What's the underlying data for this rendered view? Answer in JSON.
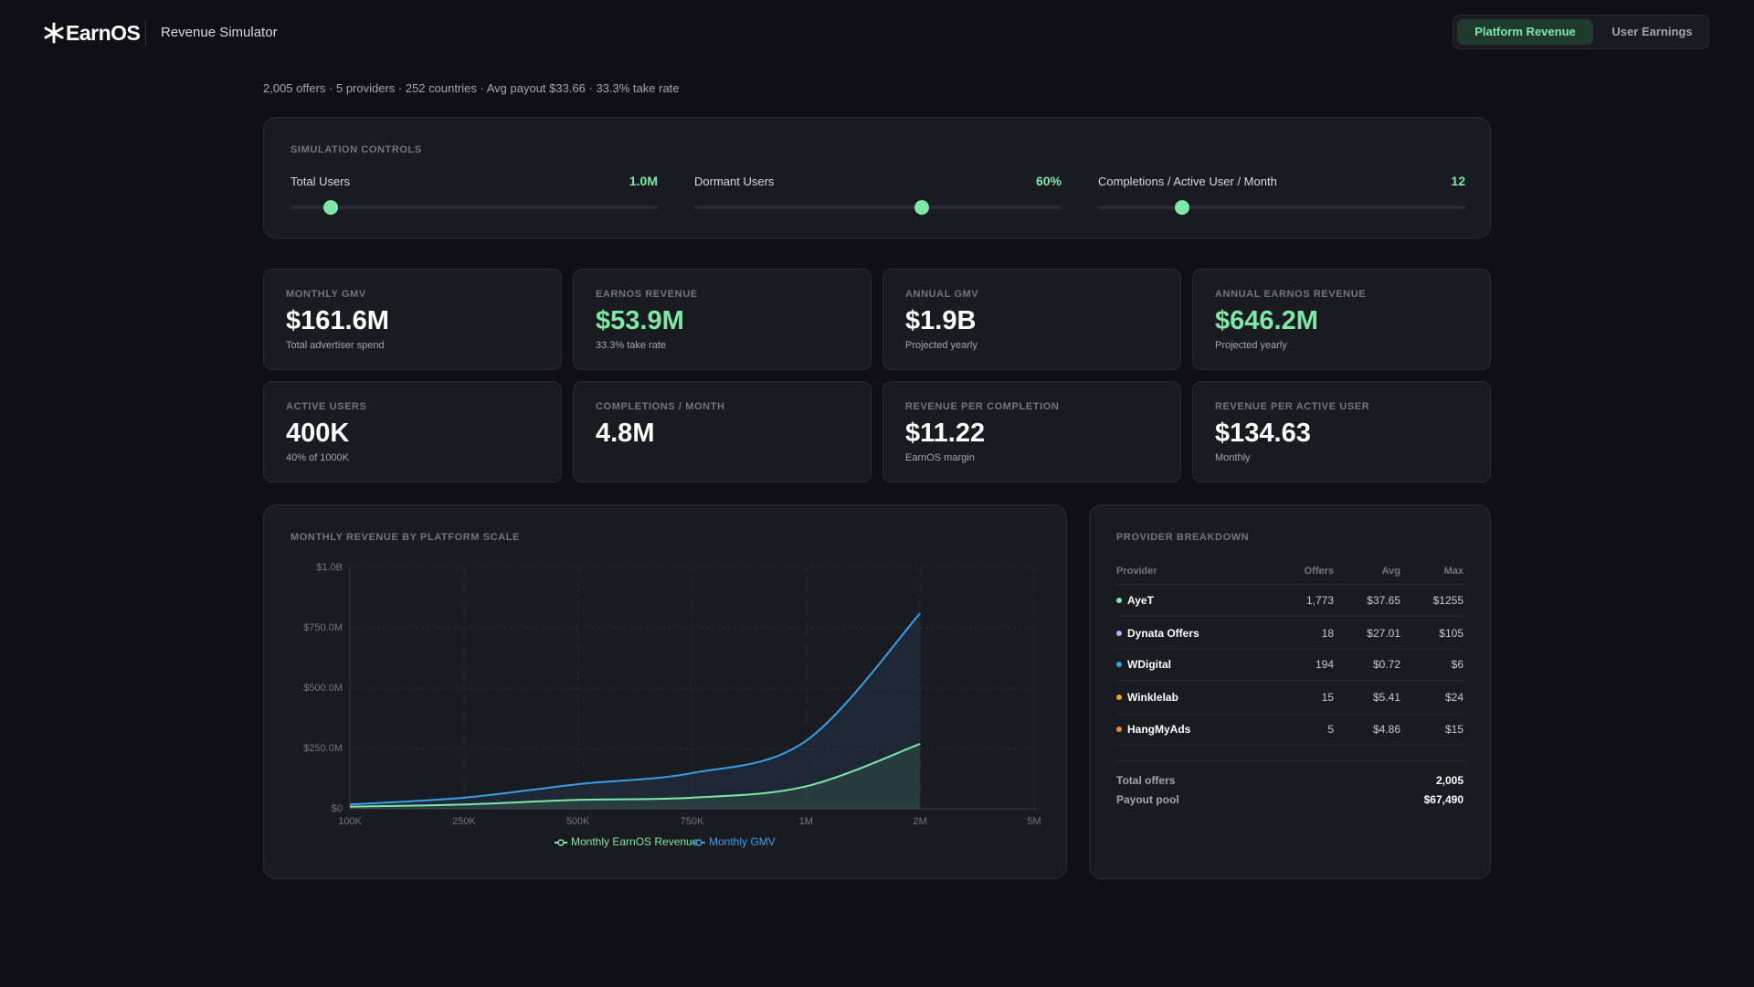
{
  "header": {
    "logo": "EarnOS",
    "title": "Revenue Simulator",
    "tabs": [
      "Platform Revenue",
      "User Earnings"
    ]
  },
  "summary": "2,005 offers · 5 providers · 252 countries · Avg payout $33.66 · 33.3% take rate",
  "controls": {
    "title": "SIMULATION CONTROLS",
    "sliders": [
      {
        "label": "Total Users",
        "value": "1.0M"
      },
      {
        "label": "Dormant Users",
        "value": "60%"
      },
      {
        "label": "Completions / Active User / Month",
        "value": "12"
      }
    ]
  },
  "kpis": [
    {
      "label": "MONTHLY GMV",
      "value": "$161.6M",
      "note": "Total advertiser spend",
      "color": "#ffffff"
    },
    {
      "label": "EARNOS REVENUE",
      "value": "$53.9M",
      "note": "33.3% take rate",
      "color": "#7ee8a6"
    },
    {
      "label": "ANNUAL GMV",
      "value": "$1.9B",
      "note": "Projected yearly",
      "color": "#ffffff"
    },
    {
      "label": "ANNUAL EARNOS REVENUE",
      "value": "$646.2M",
      "note": "Projected yearly",
      "color": "#7ee8a6"
    },
    {
      "label": "ACTIVE USERS",
      "value": "400K",
      "note": "40% of 1000K",
      "color": "#ffffff"
    },
    {
      "label": "COMPLETIONS / MONTH",
      "value": "4.8M",
      "color": "#ffffff"
    },
    {
      "label": "REVENUE PER COMPLETION",
      "value": "$11.22",
      "note": "EarnOS margin",
      "color": "#ffffff"
    },
    {
      "label": "REVENUE PER ACTIVE USER",
      "value": "$134.63",
      "note": "Monthly",
      "color": "#ffffff"
    }
  ],
  "chart_data": {
    "type": "line",
    "title": "MONTHLY REVENUE BY PLATFORM SCALE",
    "categories": [
      "100K",
      "250K",
      "500K",
      "750K",
      "1M",
      "2M",
      "5M"
    ],
    "series": [
      {
        "name": "Monthly EarnOS Revenue",
        "color": "#7ee8a6",
        "values": [
          9000000,
          18000000,
          37000000,
          46000000,
          93000000,
          269000000,
          null
        ]
      },
      {
        "name": "Monthly GMV",
        "color": "#3b9fe8",
        "values": [
          18000000,
          46000000,
          102000000,
          148000000,
          282000000,
          810000000,
          null
        ]
      }
    ],
    "ylim": [
      0,
      1000000000
    ],
    "yticks": [
      {
        "value": 0,
        "label": "$0"
      },
      {
        "value": 250000000,
        "label": "$250.0M"
      },
      {
        "value": 500000000,
        "label": "$500.0M"
      },
      {
        "value": 750000000,
        "label": "$750.0M"
      },
      {
        "value": 1000000000,
        "label": "$1.0B"
      }
    ],
    "grid": true,
    "legend": "bottom"
  },
  "providers": {
    "title": "PROVIDER BREAKDOWN",
    "columns": [
      "Provider",
      "Offers",
      "Avg",
      "Max"
    ],
    "rows": [
      {
        "name": "AyeT",
        "offers": "1,773",
        "avg": "$37.65",
        "max": "$1255",
        "color": "#7ee8a6"
      },
      {
        "name": "Dynata Offers",
        "offers": "18",
        "avg": "$27.01",
        "max": "$105",
        "color": "#a5b4fc"
      },
      {
        "name": "WDigital",
        "offers": "194",
        "avg": "$0.72",
        "max": "$6",
        "color": "#3b9fe8"
      },
      {
        "name": "Winklelab",
        "offers": "15",
        "avg": "$5.41",
        "max": "$24",
        "color": "#f5a524"
      },
      {
        "name": "HangMyAds",
        "offers": "5",
        "avg": "$4.86",
        "max": "$15",
        "color": "#f08a24"
      }
    ],
    "totals": [
      {
        "label": "Total offers",
        "value": "2,005"
      },
      {
        "label": "Payout pool",
        "value": "$67,490"
      }
    ]
  }
}
